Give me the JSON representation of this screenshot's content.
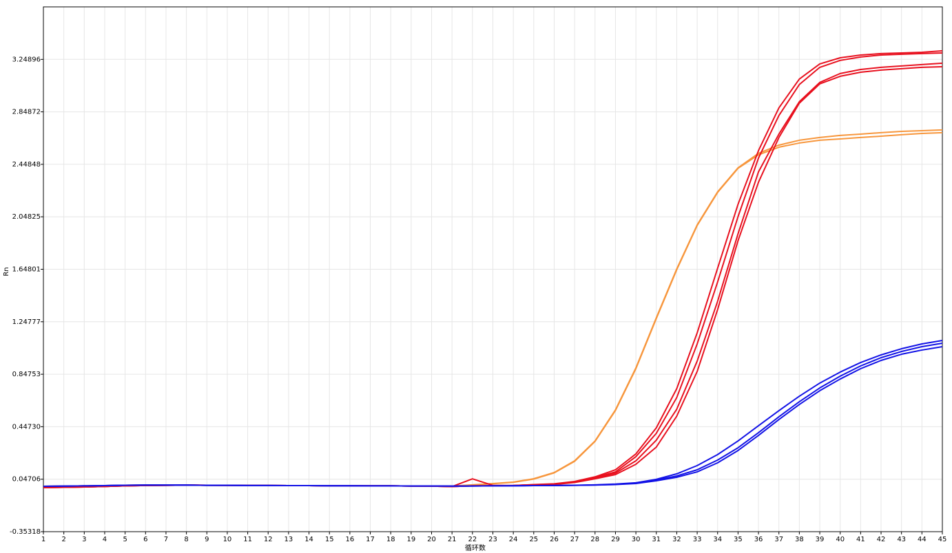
{
  "chart_data": {
    "type": "line",
    "xlabel": "循环数",
    "ylabel": "Rn",
    "grid": true,
    "x": [
      1,
      2,
      3,
      4,
      5,
      6,
      7,
      8,
      9,
      10,
      11,
      12,
      13,
      14,
      15,
      16,
      17,
      18,
      19,
      20,
      21,
      22,
      23,
      24,
      25,
      26,
      27,
      28,
      29,
      30,
      31,
      32,
      33,
      34,
      35,
      36,
      37,
      38,
      39,
      40,
      41,
      42,
      43,
      44,
      45
    ],
    "xlim": [
      1,
      45
    ],
    "xticks": [
      1,
      2,
      3,
      4,
      5,
      6,
      7,
      8,
      9,
      10,
      11,
      12,
      13,
      14,
      15,
      16,
      17,
      18,
      19,
      20,
      21,
      22,
      23,
      24,
      25,
      26,
      27,
      28,
      29,
      30,
      31,
      32,
      33,
      34,
      35,
      36,
      37,
      38,
      39,
      40,
      41,
      42,
      43,
      44,
      45
    ],
    "ylim": [
      -0.35318,
      3.6492
    ],
    "yticks": [
      -0.35318,
      0.04706,
      {
        "value": 0.4473,
        "label": "0.44730"
      },
      0.84753,
      1.24777,
      1.64801,
      2.04825,
      2.44848,
      2.84872,
      3.24896
    ],
    "series": [
      {
        "color": "#f7963c",
        "values": [
          -0.007,
          -0.006,
          -0.004,
          -0.002,
          0.001,
          0.002,
          0.002,
          0.002,
          0.0,
          0.0,
          -0.001,
          -0.001,
          -0.002,
          -0.002,
          -0.003,
          -0.003,
          -0.004,
          -0.004,
          -0.005,
          -0.005,
          -0.006,
          0.004,
          0.014,
          0.025,
          0.051,
          0.098,
          0.187,
          0.339,
          0.576,
          0.896,
          1.279,
          1.651,
          1.987,
          2.239,
          2.422,
          2.532,
          2.595,
          2.632,
          2.653,
          2.669,
          2.679,
          2.69,
          2.7,
          2.705,
          2.711
        ]
      },
      {
        "color": "#f7963c",
        "values": [
          -0.007,
          -0.006,
          -0.004,
          -0.002,
          0.001,
          0.002,
          0.002,
          0.002,
          0.0,
          0.0,
          -0.001,
          -0.001,
          -0.002,
          -0.002,
          -0.003,
          -0.003,
          -0.004,
          -0.004,
          -0.005,
          -0.005,
          -0.006,
          0.003,
          0.013,
          0.023,
          0.048,
          0.095,
          0.183,
          0.335,
          0.571,
          0.89,
          1.272,
          1.645,
          1.982,
          2.234,
          2.418,
          2.521,
          2.579,
          2.611,
          2.632,
          2.642,
          2.653,
          2.663,
          2.674,
          2.684,
          2.69
        ]
      },
      {
        "color": "#e8101e",
        "values": [
          -0.017,
          -0.015,
          -0.012,
          -0.008,
          -0.004,
          -0.001,
          0.0,
          0.002,
          0.001,
          0.0,
          -0.001,
          -0.001,
          -0.002,
          -0.002,
          -0.003,
          -0.003,
          -0.004,
          -0.004,
          -0.005,
          -0.006,
          -0.009,
          0.05,
          0.0,
          -0.001,
          0.006,
          0.012,
          0.03,
          0.065,
          0.119,
          0.24,
          0.439,
          0.738,
          1.163,
          1.656,
          2.144,
          2.553,
          2.879,
          3.099,
          3.214,
          3.261,
          3.282,
          3.293,
          3.298,
          3.303,
          3.314
        ]
      },
      {
        "color": "#e8101e",
        "values": [
          -0.017,
          -0.015,
          -0.012,
          -0.008,
          -0.004,
          -0.001,
          0.0,
          0.002,
          0.001,
          0.0,
          -0.001,
          -0.001,
          -0.002,
          -0.002,
          -0.003,
          -0.003,
          -0.004,
          -0.004,
          -0.005,
          -0.006,
          -0.009,
          -0.004,
          -0.003,
          -0.001,
          0.005,
          0.01,
          0.027,
          0.06,
          0.103,
          0.219,
          0.397,
          0.67,
          1.079,
          1.551,
          2.05,
          2.496,
          2.821,
          3.057,
          3.188,
          3.241,
          3.267,
          3.282,
          3.288,
          3.293,
          3.298
        ]
      },
      {
        "color": "#e8101e",
        "values": [
          -0.017,
          -0.015,
          -0.012,
          -0.008,
          -0.004,
          -0.001,
          0.0,
          0.002,
          0.001,
          0.0,
          -0.001,
          -0.001,
          -0.002,
          -0.002,
          -0.003,
          -0.003,
          -0.004,
          -0.004,
          -0.005,
          -0.006,
          -0.009,
          -0.004,
          -0.003,
          -0.001,
          0.004,
          0.009,
          0.025,
          0.056,
          0.093,
          0.187,
          0.345,
          0.581,
          0.948,
          1.404,
          1.919,
          2.391,
          2.679,
          2.926,
          3.073,
          3.141,
          3.172,
          3.188,
          3.199,
          3.209,
          3.22
        ]
      },
      {
        "color": "#e8101e",
        "values": [
          -0.017,
          -0.015,
          -0.012,
          -0.008,
          -0.004,
          -0.001,
          0.0,
          0.002,
          0.001,
          0.0,
          -0.001,
          -0.001,
          -0.002,
          -0.002,
          -0.003,
          -0.003,
          -0.004,
          -0.004,
          -0.005,
          -0.006,
          -0.009,
          -0.004,
          -0.003,
          -0.002,
          0.003,
          0.007,
          0.022,
          0.05,
          0.082,
          0.161,
          0.292,
          0.528,
          0.869,
          1.341,
          1.866,
          2.312,
          2.653,
          2.915,
          3.062,
          3.12,
          3.151,
          3.167,
          3.178,
          3.188,
          3.193
        ]
      },
      {
        "color": "#1212e6",
        "values": [
          -0.007,
          -0.006,
          -0.004,
          -0.002,
          0.001,
          0.002,
          0.002,
          0.002,
          0.0,
          0.0,
          -0.001,
          -0.001,
          -0.002,
          -0.002,
          -0.003,
          -0.003,
          -0.004,
          -0.004,
          -0.005,
          -0.005,
          -0.006,
          -0.005,
          -0.004,
          -0.003,
          -0.002,
          -0.001,
          0.001,
          0.004,
          0.01,
          0.02,
          0.046,
          0.088,
          0.151,
          0.235,
          0.339,
          0.455,
          0.57,
          0.68,
          0.78,
          0.864,
          0.937,
          0.995,
          1.042,
          1.079,
          1.105
        ]
      },
      {
        "color": "#1212e6",
        "values": [
          -0.007,
          -0.006,
          -0.004,
          -0.002,
          0.001,
          0.002,
          0.002,
          0.002,
          0.0,
          0.0,
          -0.001,
          -0.001,
          -0.002,
          -0.002,
          -0.003,
          -0.003,
          -0.004,
          -0.004,
          -0.005,
          -0.005,
          -0.006,
          -0.005,
          -0.004,
          -0.003,
          -0.002,
          -0.001,
          0.0,
          0.003,
          0.008,
          0.017,
          0.04,
          0.072,
          0.119,
          0.193,
          0.287,
          0.402,
          0.523,
          0.638,
          0.743,
          0.833,
          0.911,
          0.974,
          1.021,
          1.058,
          1.084
        ]
      },
      {
        "color": "#1212e6",
        "values": [
          -0.007,
          -0.006,
          -0.004,
          -0.002,
          0.001,
          0.002,
          0.002,
          0.002,
          0.0,
          0.0,
          -0.001,
          -0.001,
          -0.002,
          -0.002,
          -0.003,
          -0.003,
          -0.004,
          -0.004,
          -0.005,
          -0.005,
          -0.006,
          -0.005,
          -0.004,
          -0.003,
          -0.002,
          -0.001,
          0.0,
          0.002,
          0.006,
          0.014,
          0.035,
          0.062,
          0.103,
          0.172,
          0.266,
          0.381,
          0.502,
          0.617,
          0.722,
          0.811,
          0.89,
          0.953,
          1.0,
          1.032,
          1.058
        ]
      }
    ]
  }
}
